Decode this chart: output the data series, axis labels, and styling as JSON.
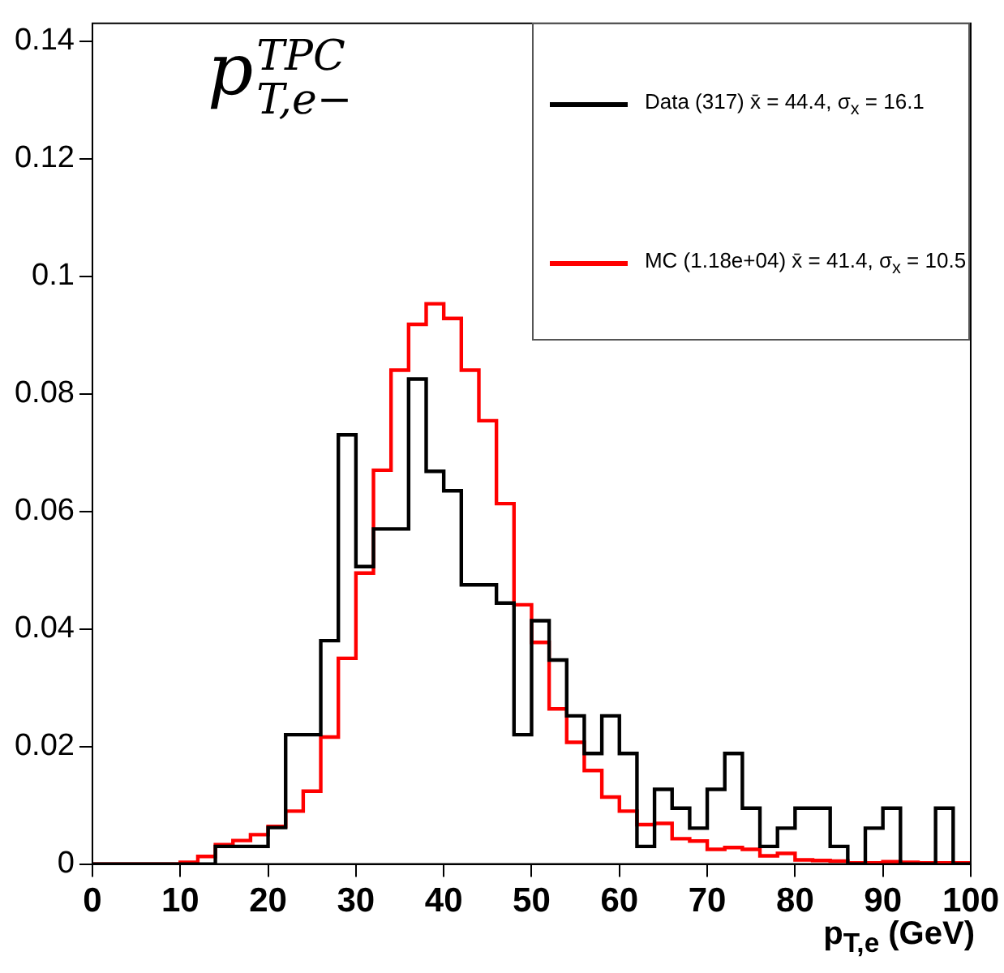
{
  "chart_data": {
    "type": "histogram",
    "title": "p$^{TPC}$$_{T,e−}$",
    "xlabel": "p$_{T,e}$ (GeV)",
    "bins": [
      0,
      2,
      4,
      6,
      8,
      10,
      12,
      14,
      16,
      18,
      20,
      22,
      24,
      26,
      28,
      30,
      32,
      34,
      36,
      38,
      40,
      42,
      44,
      46,
      48,
      50,
      52,
      54,
      56,
      58,
      60,
      62,
      64,
      66,
      68,
      70,
      72,
      74,
      76,
      78,
      80,
      82,
      84,
      86,
      88,
      90,
      92,
      94,
      96,
      98,
      100
    ],
    "series": [
      {
        "name": "Data (317) x̄ = 44.4, σ$_{x}$ = 16.1",
        "color": "#000000",
        "values": [
          0,
          0,
          0,
          0,
          0,
          0,
          0,
          0.003,
          0.003,
          0.003,
          0.0062,
          0.022,
          0.022,
          0.038,
          0.073,
          0.0506,
          0.057,
          0.057,
          0.0825,
          0.0668,
          0.0635,
          0.0475,
          0.0475,
          0.0444,
          0.022,
          0.0414,
          0.0347,
          0.0252,
          0.0188,
          0.0252,
          0.0188,
          0.003,
          0.0127,
          0.0095,
          0.0061,
          0.0127,
          0.0188,
          0.0095,
          0.003,
          0.0061,
          0.0095,
          0.0095,
          0.003,
          0,
          0.0061,
          0.0095,
          0,
          0,
          0.0095,
          0
        ]
      },
      {
        "name": "MC (1.18e+04) x̄ = 41.4, σ$_{x}$ = 10.5",
        "color": "#ff0000",
        "values": [
          0,
          0,
          0,
          0,
          0,
          0.0003,
          0.0013,
          0.0033,
          0.004,
          0.005,
          0.0064,
          0.009,
          0.0124,
          0.0216,
          0.035,
          0.0495,
          0.067,
          0.084,
          0.0918,
          0.0953,
          0.0928,
          0.084,
          0.0754,
          0.0613,
          0.0441,
          0.0377,
          0.0264,
          0.0207,
          0.0159,
          0.0114,
          0.009,
          0.0067,
          0.0069,
          0.0043,
          0.0039,
          0.0025,
          0.0028,
          0.0025,
          0.0014,
          0.0018,
          0.0007,
          0.0006,
          0.0005,
          0.0002,
          0.0002,
          0.0004,
          0.0003,
          0.0002,
          0.0002,
          0.0002
        ]
      }
    ],
    "xlim": [
      0,
      100
    ],
    "xticks": [
      0,
      10,
      20,
      30,
      40,
      50,
      60,
      70,
      80,
      90,
      100
    ],
    "ylim": [
      0,
      0.143
    ],
    "yticks": [
      0,
      0.02,
      0.04,
      0.06,
      0.08,
      0.1,
      0.12,
      0.14
    ],
    "grid": false,
    "legend": "top right"
  }
}
